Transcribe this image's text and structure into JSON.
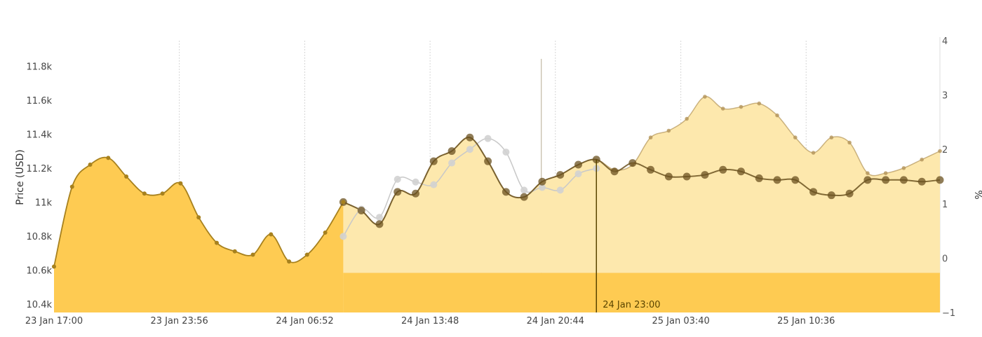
{
  "chart_data": {
    "type": "area",
    "y_left": {
      "label": "Price (USD)",
      "range": [
        10.35,
        11.95
      ],
      "tick_values": [
        10.4,
        10.6,
        10.8,
        11.0,
        11.2,
        11.4,
        11.6,
        11.8
      ],
      "tick_labels": [
        "10.4k",
        "10.6k",
        "10.8k",
        "11k",
        "11.2k",
        "11.4k",
        "11.6k",
        "11.8k"
      ]
    },
    "y_right": {
      "label": "%",
      "range": [
        -1,
        4
      ],
      "tick_values": [
        -1,
        0,
        1,
        2,
        3,
        4
      ],
      "tick_labels": [
        "−1",
        "0",
        "1",
        "2",
        "3",
        "4"
      ]
    },
    "x_axis": {
      "range": [
        0,
        49
      ],
      "tick_values": [
        0,
        6.93,
        13.87,
        20.8,
        27.73,
        34.67,
        41.6
      ],
      "tick_labels": [
        "23 Jan 17:00",
        "23 Jan 23:56",
        "24 Jan 06:52",
        "24 Jan 13:48",
        "24 Jan 20:44",
        "25 Jan 03:40",
        "25 Jan 10:36"
      ]
    },
    "now_marker": {
      "x": 30,
      "label": "24 Jan 23:00"
    },
    "series": [
      {
        "role": "actual",
        "axis": "left",
        "x": [
          0,
          1,
          2,
          3,
          4,
          5,
          6,
          7,
          8,
          9,
          10,
          11,
          12,
          13,
          14,
          15,
          16
        ],
        "values": [
          10.62,
          11.09,
          11.22,
          11.26,
          11.15,
          11.05,
          11.05,
          11.11,
          10.91,
          10.76,
          10.71,
          10.69,
          10.81,
          10.65,
          10.69,
          10.82,
          11.0
        ]
      },
      {
        "role": "forecast-upper",
        "axis": "left",
        "x": [
          16,
          17,
          18,
          19,
          20,
          21,
          22,
          23,
          24,
          25,
          26,
          27,
          28,
          29,
          30,
          31,
          32,
          33,
          34,
          35,
          36,
          37,
          38,
          39,
          40,
          41,
          42,
          43,
          44,
          45,
          46,
          47,
          48,
          49
        ],
        "values": [
          11.0,
          10.95,
          10.87,
          11.06,
          11.05,
          11.24,
          11.3,
          11.38,
          11.24,
          11.06,
          11.03,
          11.12,
          11.16,
          11.22,
          11.25,
          11.19,
          11.22,
          11.38,
          11.42,
          11.49,
          11.62,
          11.55,
          11.56,
          11.58,
          11.51,
          11.38,
          11.29,
          11.38,
          11.35,
          11.17,
          11.17,
          11.2,
          11.25,
          11.3
        ]
      },
      {
        "role": "forecast-line",
        "axis": "left",
        "x": [
          16,
          17,
          18,
          19,
          20,
          21,
          22,
          23,
          24,
          25,
          26,
          27,
          28,
          29,
          30,
          31,
          32,
          33,
          34,
          35,
          36,
          37,
          38,
          39,
          40,
          41,
          42,
          43,
          44,
          45,
          46,
          47,
          48,
          49
        ],
        "values": [
          11.0,
          10.95,
          10.87,
          11.06,
          11.05,
          11.24,
          11.3,
          11.38,
          11.24,
          11.06,
          11.03,
          11.12,
          11.16,
          11.22,
          11.25,
          11.18,
          11.23,
          11.19,
          11.15,
          11.15,
          11.16,
          11.19,
          11.18,
          11.14,
          11.13,
          11.13,
          11.06,
          11.04,
          11.05,
          11.13,
          11.13,
          11.13,
          11.12,
          11.13
        ]
      },
      {
        "role": "percent",
        "axis": "right",
        "x": [
          16,
          17,
          18,
          19,
          20,
          21,
          22,
          23,
          24,
          25,
          26,
          27,
          28,
          29,
          30
        ],
        "values": [
          0.4,
          0.9,
          0.75,
          1.45,
          1.4,
          1.35,
          1.75,
          2.0,
          2.2,
          1.95,
          1.25,
          1.3,
          1.25,
          1.55,
          1.65
        ]
      }
    ],
    "colors": {
      "actual_fill": "#fecb52",
      "actual_line": "#a7811e",
      "forecast_fill": "#fde8ad",
      "forecast_line": "#b4955a",
      "forecast_points": "#6b5220",
      "percent_line": "#c8c8c8",
      "now_line": "#5a4500"
    },
    "grid": {
      "x": true,
      "y": false
    },
    "legend": "none"
  }
}
